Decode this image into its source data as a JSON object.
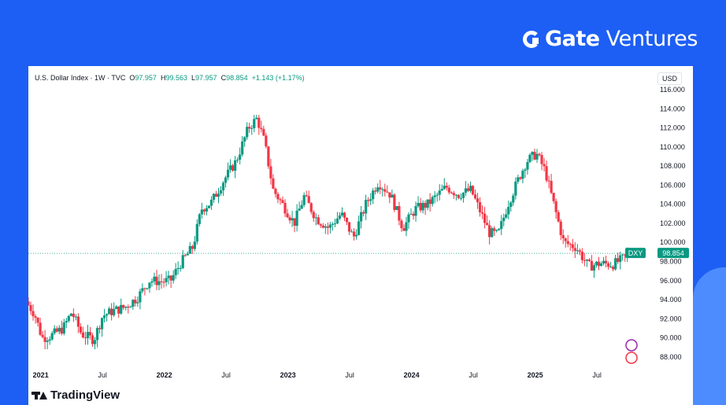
{
  "brand": {
    "name": "Gate",
    "sub": "Ventures"
  },
  "header": {
    "symbol": "U.S. Dollar Index · 1W · TVC",
    "o_label": "O",
    "o_value": "97.957",
    "h_label": "H",
    "h_value": "99.563",
    "l_label": "L",
    "l_value": "97.957",
    "c_label": "C",
    "c_value": "98.854",
    "change": "+1.143 (+1.17%)"
  },
  "currency": "USD",
  "footer": {
    "brand": "TradingView"
  },
  "chart_data": {
    "type": "candlestick",
    "symbol": "DXY",
    "last_value": "98.854",
    "ylim": [
      87,
      116
    ],
    "yticks": [
      "88.000",
      "90.000",
      "92.000",
      "94.000",
      "96.000",
      "98.000",
      "100.000",
      "102.000",
      "104.000",
      "106.000",
      "108.000",
      "110.000",
      "112.000",
      "114.000",
      "116.000"
    ],
    "xticks": [
      {
        "label": "2021",
        "t": 2021.0
      },
      {
        "label": "Jul",
        "t": 2021.5
      },
      {
        "label": "2022",
        "t": 2022.0
      },
      {
        "label": "Jul",
        "t": 2022.5
      },
      {
        "label": "2023",
        "t": 2023.0
      },
      {
        "label": "Jul",
        "t": 2023.5
      },
      {
        "label": "2024",
        "t": 2024.0
      },
      {
        "label": "Jul",
        "t": 2024.5
      },
      {
        "label": "2025",
        "t": 2025.0
      },
      {
        "label": "Jul",
        "t": 2025.5
      }
    ],
    "xlim": [
      2020.9,
      2025.92
    ],
    "trend": [
      [
        2020.9,
        93.8
      ],
      [
        2020.97,
        92.5
      ],
      [
        2021.03,
        90.0
      ],
      [
        2021.1,
        90.2
      ],
      [
        2021.2,
        91.0
      ],
      [
        2021.27,
        92.7
      ],
      [
        2021.35,
        90.4
      ],
      [
        2021.45,
        89.8
      ],
      [
        2021.52,
        92.3
      ],
      [
        2021.6,
        92.8
      ],
      [
        2021.7,
        93.2
      ],
      [
        2021.8,
        94.2
      ],
      [
        2021.9,
        96.0
      ],
      [
        2022.0,
        95.9
      ],
      [
        2022.07,
        96.0
      ],
      [
        2022.15,
        97.8
      ],
      [
        2022.25,
        99.5
      ],
      [
        2022.32,
        103.5
      ],
      [
        2022.4,
        104.2
      ],
      [
        2022.5,
        106.5
      ],
      [
        2022.6,
        108.5
      ],
      [
        2022.7,
        112.0
      ],
      [
        2022.77,
        113.0
      ],
      [
        2022.83,
        110.5
      ],
      [
        2022.9,
        105.5
      ],
      [
        2023.0,
        103.5
      ],
      [
        2023.07,
        102.0
      ],
      [
        2023.15,
        104.8
      ],
      [
        2023.25,
        102.5
      ],
      [
        2023.35,
        101.5
      ],
      [
        2023.45,
        103.0
      ],
      [
        2023.55,
        100.5
      ],
      [
        2023.65,
        104.0
      ],
      [
        2023.75,
        106.3
      ],
      [
        2023.85,
        105.0
      ],
      [
        2023.95,
        101.5
      ],
      [
        2024.05,
        103.5
      ],
      [
        2024.15,
        104.0
      ],
      [
        2024.3,
        105.8
      ],
      [
        2024.4,
        105.0
      ],
      [
        2024.5,
        105.5
      ],
      [
        2024.55,
        104.0
      ],
      [
        2024.65,
        101.0
      ],
      [
        2024.72,
        100.8
      ],
      [
        2024.8,
        104.0
      ],
      [
        2024.88,
        106.5
      ],
      [
        2024.95,
        108.5
      ],
      [
        2025.03,
        109.3
      ],
      [
        2025.1,
        107.5
      ],
      [
        2025.17,
        104.0
      ],
      [
        2025.25,
        100.0
      ],
      [
        2025.35,
        99.5
      ],
      [
        2025.45,
        97.5
      ],
      [
        2025.55,
        97.8
      ],
      [
        2025.65,
        97.7
      ],
      [
        2025.72,
        98.2
      ],
      [
        2025.78,
        98.854
      ]
    ]
  }
}
